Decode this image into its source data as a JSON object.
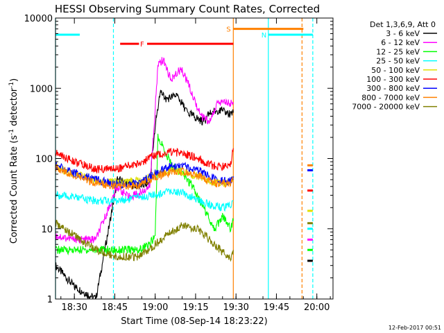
{
  "chart_data": {
    "type": "line",
    "title": "HESSI Observing Summary Count Rates, Corrected",
    "xlabel": "Start Time (08-Sep-14 18:23:22)",
    "ylabel_main": "Corrected Count Rate (s",
    "ylabel_sup1": "-1",
    "ylabel_mid": " detector",
    "ylabel_sup2": "-1",
    "ylabel_end": ")",
    "y_scale": "log",
    "xlim_min": [
      1103,
      1206
    ],
    "ylim": [
      1,
      10000
    ],
    "x_ticks": [
      {
        "label": "18:30",
        "min": 1110
      },
      {
        "label": "18:45",
        "min": 1125
      },
      {
        "label": "19:00",
        "min": 1140
      },
      {
        "label": "19:15",
        "min": 1155
      },
      {
        "label": "19:30",
        "min": 1170
      },
      {
        "label": "19:45",
        "min": 1185
      },
      {
        "label": "20:00",
        "min": 1200
      }
    ],
    "y_ticks": [
      {
        "label": "1",
        "v": 1
      },
      {
        "label": "10",
        "v": 10
      },
      {
        "label": "100",
        "v": 100
      },
      {
        "label": "1000",
        "v": 1000
      },
      {
        "label": "10000",
        "v": 10000
      }
    ],
    "legend_header": "Det 1,3,6,9, Att 0",
    "legend_placement": "right",
    "series": [
      {
        "name": "3 - 6 keV",
        "color": "#000000",
        "x": [
          1103,
          1110,
          1118,
          1126,
          1134,
          1138,
          1140,
          1142,
          1144,
          1148,
          1152,
          1158,
          1160,
          1164,
          1168,
          1169
        ],
        "y": [
          3,
          1.5,
          1,
          50,
          40,
          45,
          300,
          900,
          700,
          800,
          450,
          330,
          430,
          500,
          420,
          450
        ]
      },
      {
        "name": "6 - 12 keV",
        "color": "#ff00ff",
        "x": [
          1103,
          1110,
          1118,
          1126,
          1130,
          1134,
          1138,
          1140,
          1141,
          1143,
          1146,
          1148,
          1150,
          1153,
          1157,
          1160,
          1163,
          1165,
          1168,
          1169
        ],
        "y": [
          8,
          7,
          7,
          40,
          28,
          32,
          40,
          500,
          2200,
          2500,
          1300,
          1700,
          1800,
          1000,
          400,
          330,
          600,
          700,
          600,
          600
        ]
      },
      {
        "name": "12 - 25 keV",
        "color": "#00ff00",
        "x": [
          1103,
          1110,
          1118,
          1126,
          1134,
          1138,
          1140,
          1141,
          1143,
          1146,
          1150,
          1154,
          1158,
          1162,
          1165,
          1168,
          1169
        ],
        "y": [
          5,
          5,
          5,
          5,
          5,
          6,
          8,
          200,
          150,
          80,
          60,
          40,
          20,
          10,
          15,
          10,
          13
        ]
      },
      {
        "name": "25 - 50 keV",
        "color": "#00ffff",
        "x": [
          1103,
          1110,
          1118,
          1126,
          1134,
          1140,
          1146,
          1150,
          1156,
          1160,
          1164,
          1168,
          1169
        ],
        "y": [
          30,
          28,
          25,
          25,
          28,
          30,
          35,
          33,
          26,
          22,
          20,
          21,
          25
        ]
      },
      {
        "name": "50 - 100 keV",
        "color": "#e0e000",
        "x": [
          1103,
          1110,
          1118,
          1126,
          1134,
          1140,
          1146,
          1150,
          1156,
          1160,
          1164,
          1168,
          1169
        ],
        "y": [
          75,
          60,
          48,
          45,
          48,
          58,
          68,
          65,
          56,
          48,
          44,
          45,
          55
        ]
      },
      {
        "name": "100 - 300 keV",
        "color": "#ff0000",
        "x": [
          1103,
          1110,
          1118,
          1126,
          1134,
          1140,
          1146,
          1150,
          1156,
          1160,
          1164,
          1168,
          1169
        ],
        "y": [
          120,
          90,
          70,
          72,
          85,
          110,
          125,
          120,
          100,
          82,
          75,
          80,
          140
        ]
      },
      {
        "name": "300 - 800 keV",
        "color": "#0000ff",
        "x": [
          1103,
          1110,
          1118,
          1126,
          1134,
          1140,
          1146,
          1150,
          1156,
          1160,
          1164,
          1168,
          1169
        ],
        "y": [
          80,
          62,
          50,
          42,
          45,
          62,
          78,
          78,
          68,
          55,
          48,
          48,
          56
        ]
      },
      {
        "name": "800 - 7000 keV",
        "color": "#ff8000",
        "x": [
          1103,
          1110,
          1118,
          1126,
          1134,
          1140,
          1146,
          1150,
          1156,
          1160,
          1164,
          1168,
          1169
        ],
        "y": [
          75,
          58,
          45,
          40,
          42,
          55,
          65,
          65,
          57,
          47,
          43,
          44,
          52
        ]
      },
      {
        "name": "7000 - 20000 keV",
        "color": "#808000",
        "x": [
          1103,
          1110,
          1118,
          1126,
          1134,
          1140,
          1146,
          1150,
          1156,
          1160,
          1164,
          1168,
          1169
        ],
        "y": [
          12,
          8,
          5,
          4,
          4,
          6,
          9,
          11,
          10,
          7,
          5,
          4,
          5
        ]
      }
    ],
    "late_segments": [
      {
        "color": "#ff8000",
        "v": 80
      },
      {
        "color": "#0000ff",
        "v": 68
      },
      {
        "color": "#ff0000",
        "v": 35
      },
      {
        "color": "#e0e000",
        "v": 18
      },
      {
        "color": "#00ffff",
        "v": 10
      },
      {
        "color": "#ff00ff",
        "v": 7
      },
      {
        "color": "#00ff00",
        "v": 5
      },
      {
        "color": "#000000",
        "v": 3.5
      },
      {
        "color": "#808000",
        "v": 12
      }
    ],
    "late_x": [
      1196.5,
      1198.5
    ],
    "flag_rows": [
      {
        "label": "N",
        "color": "#00ffff",
        "v": 5800,
        "segments": [
          [
            1103,
            1112
          ],
          [
            1182,
            1198.5
          ]
        ]
      },
      {
        "label": "F",
        "color": "#ff0000",
        "v": 4300,
        "segments": [
          [
            1127,
            1134
          ],
          [
            1137,
            1169
          ]
        ]
      },
      {
        "label": "S",
        "color": "#ff8000",
        "v": 7000,
        "segments": [
          [
            1169,
            1195
          ]
        ]
      }
    ],
    "vlines": [
      {
        "min": 1103,
        "color": "#00ffff",
        "style": "solid"
      },
      {
        "min": 1124.5,
        "color": "#00ffff",
        "style": "dashed"
      },
      {
        "min": 1169,
        "color": "#ff8000",
        "style": "solid"
      },
      {
        "min": 1182,
        "color": "#00ffff",
        "style": "solid"
      },
      {
        "min": 1194.5,
        "color": "#ff8000",
        "style": "dashed"
      },
      {
        "min": 1198.5,
        "color": "#00ffff",
        "style": "dashed"
      }
    ],
    "timestamp": "12-Feb-2017 00:51"
  }
}
